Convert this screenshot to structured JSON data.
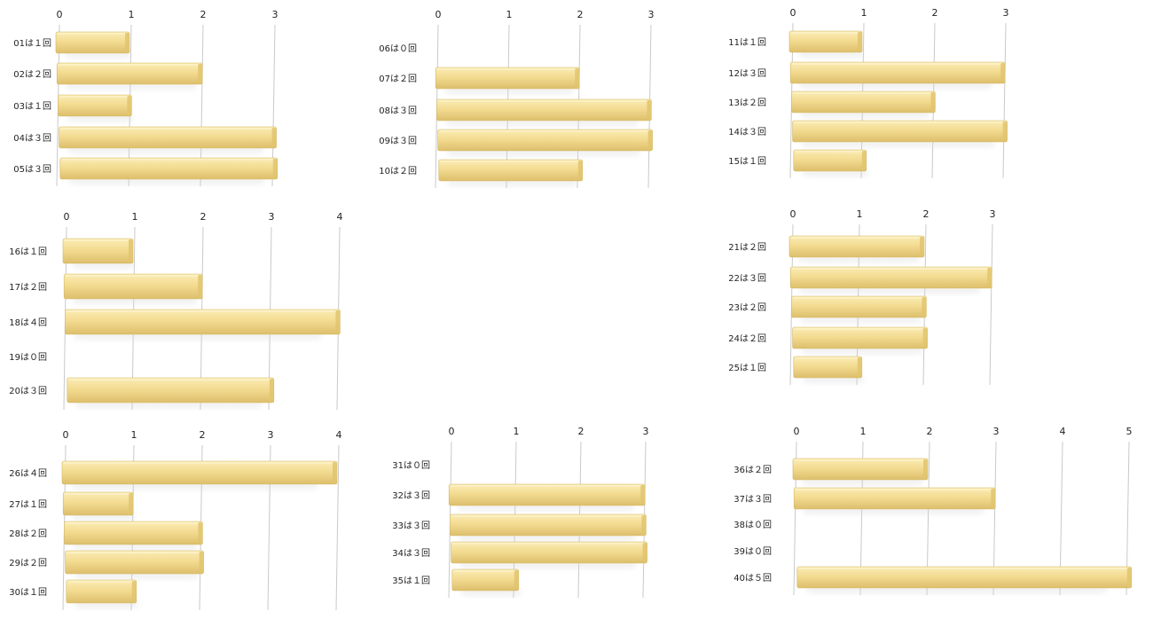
{
  "chart_data": [
    {
      "type": "bar",
      "title": "",
      "xlabel": "",
      "ylabel": "",
      "xlim": [
        0,
        3
      ],
      "categories": [
        "01は１回",
        "02は２回",
        "03は１回",
        "04は３回",
        "05は３回"
      ],
      "values": [
        1,
        2,
        1,
        3,
        3
      ],
      "colors": {
        "bar": "#F2D98C",
        "bar_end": "#E2C46E",
        "grid": "#C9C9C9"
      }
    },
    {
      "type": "bar",
      "title": "",
      "xlabel": "",
      "ylabel": "",
      "xlim": [
        0,
        3
      ],
      "categories": [
        "06は０回",
        "07は２回",
        "08は３回",
        "09は３回",
        "10は２回"
      ],
      "values": [
        0,
        2,
        3,
        3,
        2
      ],
      "colors": {
        "bar": "#F2D98C",
        "bar_end": "#E2C46E",
        "grid": "#C9C9C9"
      }
    },
    {
      "type": "bar",
      "title": "",
      "xlabel": "",
      "ylabel": "",
      "xlim": [
        0,
        3
      ],
      "categories": [
        "11は１回",
        "12は３回",
        "13は２回",
        "14は３回",
        "15は１回"
      ],
      "values": [
        1,
        3,
        2,
        3,
        1
      ],
      "colors": {
        "bar": "#F2D98C",
        "bar_end": "#E2C46E",
        "grid": "#C9C9C9"
      }
    },
    {
      "type": "bar",
      "title": "",
      "xlabel": "",
      "ylabel": "",
      "xlim": [
        0,
        4
      ],
      "categories": [
        "16は１回",
        "17は２回",
        "18は４回",
        "19は０回",
        "20は３回"
      ],
      "values": [
        1,
        2,
        4,
        0,
        3
      ],
      "colors": {
        "bar": "#F2D98C",
        "bar_end": "#E2C46E",
        "grid": "#C9C9C9"
      }
    },
    {
      "type": "bar",
      "title": "",
      "xlabel": "",
      "ylabel": "",
      "xlim": [
        0,
        3
      ],
      "categories": [
        "21は２回",
        "22は３回",
        "23は２回",
        "24は２回",
        "25は１回"
      ],
      "values": [
        2,
        3,
        2,
        2,
        1
      ],
      "colors": {
        "bar": "#F2D98C",
        "bar_end": "#E2C46E",
        "grid": "#C9C9C9"
      }
    },
    {
      "type": "bar",
      "title": "",
      "xlabel": "",
      "ylabel": "",
      "xlim": [
        0,
        4
      ],
      "categories": [
        "26は４回",
        "27は１回",
        "28は２回",
        "29は２回",
        "30は１回"
      ],
      "values": [
        4,
        1,
        2,
        2,
        1
      ],
      "colors": {
        "bar": "#F2D98C",
        "bar_end": "#E2C46E",
        "grid": "#C9C9C9"
      }
    },
    {
      "type": "bar",
      "title": "",
      "xlabel": "",
      "ylabel": "",
      "xlim": [
        0,
        3
      ],
      "categories": [
        "31は０回",
        "32は３回",
        "33は３回",
        "34は３回",
        "35は１回"
      ],
      "values": [
        0,
        3,
        3,
        3,
        1
      ],
      "colors": {
        "bar": "#F2D98C",
        "bar_end": "#E2C46E",
        "grid": "#C9C9C9"
      }
    },
    {
      "type": "bar",
      "title": "",
      "xlabel": "",
      "ylabel": "",
      "xlim": [
        0,
        5
      ],
      "categories": [
        "36は２回",
        "37は３回",
        "38は０回",
        "39は０回",
        "40は５回"
      ],
      "values": [
        2,
        3,
        0,
        0,
        5
      ],
      "colors": {
        "bar": "#F2D98C",
        "bar_end": "#E2C46E",
        "grid": "#C9C9C9"
      }
    }
  ]
}
